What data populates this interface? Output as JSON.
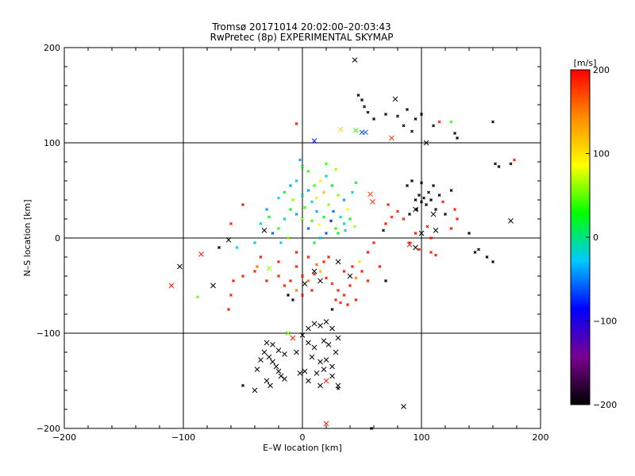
{
  "chart_data": {
    "type": "scatter",
    "title": "Tromsø 20171014 20:02:00–20:03:43",
    "subtitle": "RwPretec (8p) EXPERIMENTAL SKYMAP",
    "xlabel": "E–W location [km]",
    "ylabel": "N–S location [km]",
    "xlim": [
      -200,
      200
    ],
    "ylim": [
      -200,
      200
    ],
    "x_ticks": [
      -200,
      -100,
      0,
      100,
      200
    ],
    "y_ticks": [
      -200,
      -100,
      0,
      100,
      200
    ],
    "x_tick_labels": [
      "−200",
      "−100",
      "0",
      "100",
      "200"
    ],
    "y_tick_labels": [
      "−200",
      "−100",
      "0",
      "100",
      "200"
    ],
    "grid": true,
    "colorbar": {
      "label": "[m/s]",
      "range": [
        -200,
        200
      ],
      "ticks": [
        200,
        100,
        0,
        -100,
        -200
      ],
      "tick_labels": [
        "200",
        "100",
        "0",
        "−100",
        "−200"
      ],
      "colors": [
        "#000000",
        "#7a0090",
        "#0000ff",
        "#00c8ff",
        "#00ff00",
        "#ffff00",
        "#ff8c00",
        "#ff0000"
      ]
    },
    "cross_points": [
      {
        "x": 44,
        "y": 187,
        "v": -200
      },
      {
        "x": 10,
        "y": 102,
        "v": -80
      },
      {
        "x": 32,
        "y": 114,
        "v": 110
      },
      {
        "x": 45,
        "y": 113,
        "v": 40
      },
      {
        "x": 50,
        "y": 111,
        "v": -70
      },
      {
        "x": 53,
        "y": 111,
        "v": -60
      },
      {
        "x": 78,
        "y": 146,
        "v": -200
      },
      {
        "x": 75,
        "y": 105,
        "v": 180
      },
      {
        "x": 57,
        "y": 46,
        "v": 180
      },
      {
        "x": 59,
        "y": 38,
        "v": 180
      },
      {
        "x": 104,
        "y": 100,
        "v": -200
      },
      {
        "x": 95,
        "y": 30,
        "v": -200
      },
      {
        "x": 110,
        "y": 25,
        "v": -200
      },
      {
        "x": 175,
        "y": 18,
        "v": -200
      },
      {
        "x": -110,
        "y": -50,
        "v": 190
      },
      {
        "x": -103,
        "y": -30,
        "v": -200
      },
      {
        "x": -85,
        "y": -17,
        "v": 190
      },
      {
        "x": -75,
        "y": -50,
        "v": -200
      },
      {
        "x": -62,
        "y": -2,
        "v": -200
      },
      {
        "x": -32,
        "y": 8,
        "v": -200
      },
      {
        "x": -28,
        "y": -32,
        "v": 60
      },
      {
        "x": 90,
        "y": -7,
        "v": 190
      },
      {
        "x": 95,
        "y": -10,
        "v": -200
      },
      {
        "x": 100,
        "y": 5,
        "v": -200
      },
      {
        "x": 112,
        "y": 8,
        "v": -200
      },
      {
        "x": 30,
        "y": -25,
        "v": -200
      },
      {
        "x": 40,
        "y": -40,
        "v": -200
      },
      {
        "x": 10,
        "y": -35,
        "v": -200
      },
      {
        "x": 2,
        "y": -48,
        "v": -200
      },
      {
        "x": 15,
        "y": -45,
        "v": -200
      },
      {
        "x": 20,
        "y": -195,
        "v": 190
      },
      {
        "x": 85,
        "y": -177,
        "v": -200
      },
      {
        "x": 20,
        "y": -150,
        "v": 190
      },
      {
        "x": 30,
        "y": -155,
        "v": -200
      },
      {
        "x": -12,
        "y": -100,
        "v": 60
      },
      {
        "x": -8,
        "y": -105,
        "v": 190
      },
      {
        "x": -30,
        "y": -110,
        "v": -200
      },
      {
        "x": -32,
        "y": -120,
        "v": -200
      },
      {
        "x": -28,
        "y": -125,
        "v": -200
      },
      {
        "x": -25,
        "y": -130,
        "v": -200
      },
      {
        "x": -22,
        "y": -135,
        "v": -200
      },
      {
        "x": -20,
        "y": -140,
        "v": -200
      },
      {
        "x": -18,
        "y": -145,
        "v": -200
      },
      {
        "x": -35,
        "y": -128,
        "v": -200
      },
      {
        "x": -38,
        "y": -138,
        "v": -200
      },
      {
        "x": -15,
        "y": -122,
        "v": -200
      },
      {
        "x": -20,
        "y": -118,
        "v": -200
      },
      {
        "x": -25,
        "y": -112,
        "v": -200
      },
      {
        "x": -30,
        "y": -150,
        "v": -200
      },
      {
        "x": -27,
        "y": -155,
        "v": -200
      },
      {
        "x": -40,
        "y": -160,
        "v": -200
      },
      {
        "x": -15,
        "y": -148,
        "v": -200
      },
      {
        "x": 5,
        "y": -95,
        "v": -200
      },
      {
        "x": 10,
        "y": -90,
        "v": -200
      },
      {
        "x": 15,
        "y": -92,
        "v": -200
      },
      {
        "x": 20,
        "y": -88,
        "v": -200
      },
      {
        "x": 25,
        "y": -95,
        "v": -200
      },
      {
        "x": 5,
        "y": -110,
        "v": -200
      },
      {
        "x": 10,
        "y": -115,
        "v": -200
      },
      {
        "x": 18,
        "y": -108,
        "v": -200
      },
      {
        "x": 22,
        "y": -112,
        "v": -200
      },
      {
        "x": 28,
        "y": -120,
        "v": -200
      },
      {
        "x": 8,
        "y": -125,
        "v": -200
      },
      {
        "x": 15,
        "y": -130,
        "v": -200
      },
      {
        "x": 20,
        "y": -128,
        "v": -200
      },
      {
        "x": 25,
        "y": -135,
        "v": -200
      },
      {
        "x": 2,
        "y": -140,
        "v": -200
      },
      {
        "x": 12,
        "y": -142,
        "v": -200
      },
      {
        "x": 18,
        "y": -138,
        "v": -200
      },
      {
        "x": 5,
        "y": -150,
        "v": -200
      },
      {
        "x": 15,
        "y": -155,
        "v": -200
      },
      {
        "x": 25,
        "y": -145,
        "v": -200
      },
      {
        "x": -2,
        "y": -142,
        "v": -200
      },
      {
        "x": 30,
        "y": -105,
        "v": -200
      },
      {
        "x": 0,
        "y": -102,
        "v": -200
      },
      {
        "x": -5,
        "y": -120,
        "v": -200
      }
    ],
    "dot_points": [
      {
        "x": 47,
        "y": 150,
        "v": -200
      },
      {
        "x": 50,
        "y": 145,
        "v": -200
      },
      {
        "x": 52,
        "y": 138,
        "v": -200
      },
      {
        "x": 55,
        "y": 132,
        "v": -200
      },
      {
        "x": 60,
        "y": 125,
        "v": -200
      },
      {
        "x": 70,
        "y": 130,
        "v": -200
      },
      {
        "x": 80,
        "y": 128,
        "v": -200
      },
      {
        "x": 88,
        "y": 135,
        "v": -200
      },
      {
        "x": 95,
        "y": 125,
        "v": -200
      },
      {
        "x": 100,
        "y": 130,
        "v": -200
      },
      {
        "x": 85,
        "y": 118,
        "v": -200
      },
      {
        "x": 92,
        "y": 112,
        "v": -200
      },
      {
        "x": 110,
        "y": 118,
        "v": -200
      },
      {
        "x": 115,
        "y": 122,
        "v": 190
      },
      {
        "x": 125,
        "y": 122,
        "v": 40
      },
      {
        "x": 128,
        "y": 110,
        "v": -200
      },
      {
        "x": 130,
        "y": 105,
        "v": -200
      },
      {
        "x": -5,
        "y": 120,
        "v": 190
      },
      {
        "x": 160,
        "y": 122,
        "v": -200
      },
      {
        "x": 162,
        "y": 78,
        "v": -200
      },
      {
        "x": 165,
        "y": 75,
        "v": -200
      },
      {
        "x": 178,
        "y": 82,
        "v": 190
      },
      {
        "x": 175,
        "y": 78,
        "v": -200
      },
      {
        "x": 95,
        "y": 40,
        "v": -200
      },
      {
        "x": 98,
        "y": 45,
        "v": -200
      },
      {
        "x": 100,
        "y": 38,
        "v": -200
      },
      {
        "x": 102,
        "y": 42,
        "v": -200
      },
      {
        "x": 104,
        "y": 35,
        "v": -200
      },
      {
        "x": 106,
        "y": 48,
        "v": -200
      },
      {
        "x": 108,
        "y": 40,
        "v": -200
      },
      {
        "x": 96,
        "y": 30,
        "v": -200
      },
      {
        "x": 112,
        "y": 30,
        "v": -200
      },
      {
        "x": 115,
        "y": 45,
        "v": -200
      },
      {
        "x": 118,
        "y": 38,
        "v": 190
      },
      {
        "x": 120,
        "y": 25,
        "v": -200
      },
      {
        "x": 90,
        "y": 25,
        "v": -200
      },
      {
        "x": 85,
        "y": 20,
        "v": 190
      },
      {
        "x": 80,
        "y": 28,
        "v": 190
      },
      {
        "x": 75,
        "y": 22,
        "v": 190
      },
      {
        "x": 70,
        "y": 15,
        "v": 190
      },
      {
        "x": 72,
        "y": 35,
        "v": 190
      },
      {
        "x": 68,
        "y": 8,
        "v": -200
      },
      {
        "x": 88,
        "y": 55,
        "v": -200
      },
      {
        "x": 92,
        "y": 60,
        "v": -200
      },
      {
        "x": 100,
        "y": 58,
        "v": -200
      },
      {
        "x": 110,
        "y": 55,
        "v": -200
      },
      {
        "x": 125,
        "y": 50,
        "v": -200
      },
      {
        "x": 128,
        "y": 30,
        "v": 190
      },
      {
        "x": 130,
        "y": 20,
        "v": 190
      },
      {
        "x": 125,
        "y": 10,
        "v": 190
      },
      {
        "x": 105,
        "y": 12,
        "v": 190
      },
      {
        "x": 108,
        "y": 0,
        "v": 190
      },
      {
        "x": 95,
        "y": 5,
        "v": 190
      },
      {
        "x": 90,
        "y": -5,
        "v": 190
      },
      {
        "x": 98,
        "y": -12,
        "v": 190
      },
      {
        "x": 108,
        "y": -15,
        "v": 190
      },
      {
        "x": 112,
        "y": -18,
        "v": 190
      },
      {
        "x": 140,
        "y": 5,
        "v": -200
      },
      {
        "x": 145,
        "y": -15,
        "v": -200
      },
      {
        "x": 155,
        "y": -20,
        "v": -200
      },
      {
        "x": 160,
        "y": -25,
        "v": -200
      },
      {
        "x": 148,
        "y": -12,
        "v": -200
      },
      {
        "x": 0,
        "y": 75,
        "v": 20
      },
      {
        "x": 5,
        "y": 70,
        "v": 40
      },
      {
        "x": -5,
        "y": 60,
        "v": -20
      },
      {
        "x": -10,
        "y": 55,
        "v": -40
      },
      {
        "x": -15,
        "y": 48,
        "v": 20
      },
      {
        "x": -20,
        "y": 42,
        "v": -20
      },
      {
        "x": -8,
        "y": 40,
        "v": 60
      },
      {
        "x": 0,
        "y": 45,
        "v": -20
      },
      {
        "x": 5,
        "y": 50,
        "v": -40
      },
      {
        "x": 10,
        "y": 55,
        "v": 40
      },
      {
        "x": 15,
        "y": 60,
        "v": 80
      },
      {
        "x": 20,
        "y": 65,
        "v": -20
      },
      {
        "x": 25,
        "y": 55,
        "v": 20
      },
      {
        "x": 30,
        "y": 45,
        "v": 60
      },
      {
        "x": 35,
        "y": 40,
        "v": -40
      },
      {
        "x": 38,
        "y": 30,
        "v": 90
      },
      {
        "x": 40,
        "y": 20,
        "v": 20
      },
      {
        "x": 35,
        "y": 15,
        "v": -20
      },
      {
        "x": 28,
        "y": 10,
        "v": 40
      },
      {
        "x": 20,
        "y": 5,
        "v": -60
      },
      {
        "x": 15,
        "y": 0,
        "v": -20
      },
      {
        "x": 10,
        "y": -5,
        "v": 20
      },
      {
        "x": 5,
        "y": 10,
        "v": -60
      },
      {
        "x": 0,
        "y": 20,
        "v": 60
      },
      {
        "x": -5,
        "y": 25,
        "v": -40
      },
      {
        "x": -10,
        "y": 30,
        "v": 20
      },
      {
        "x": -15,
        "y": 20,
        "v": -20
      },
      {
        "x": -20,
        "y": 10,
        "v": 40
      },
      {
        "x": -25,
        "y": 5,
        "v": -60
      },
      {
        "x": -18,
        "y": -5,
        "v": -20
      },
      {
        "x": -12,
        "y": 0,
        "v": 60
      },
      {
        "x": 2,
        "y": 32,
        "v": 40
      },
      {
        "x": 8,
        "y": 38,
        "v": -20
      },
      {
        "x": 12,
        "y": 28,
        "v": -40
      },
      {
        "x": 18,
        "y": 22,
        "v": 20
      },
      {
        "x": 22,
        "y": 35,
        "v": 60
      },
      {
        "x": 26,
        "y": 28,
        "v": -60
      },
      {
        "x": 32,
        "y": 22,
        "v": -20
      },
      {
        "x": 14,
        "y": 14,
        "v": 90
      },
      {
        "x": 8,
        "y": 18,
        "v": 40
      },
      {
        "x": 24,
        "y": 18,
        "v": -80
      },
      {
        "x": 30,
        "y": 5,
        "v": 20
      },
      {
        "x": 36,
        "y": 8,
        "v": -20
      },
      {
        "x": 44,
        "y": 12,
        "v": 60
      },
      {
        "x": -30,
        "y": 30,
        "v": -40
      },
      {
        "x": -28,
        "y": 22,
        "v": 20
      },
      {
        "x": -35,
        "y": 15,
        "v": -20
      },
      {
        "x": 42,
        "y": 48,
        "v": -20
      },
      {
        "x": 45,
        "y": 58,
        "v": 20
      },
      {
        "x": 28,
        "y": 72,
        "v": 60
      },
      {
        "x": 20,
        "y": 78,
        "v": 40
      },
      {
        "x": -2,
        "y": 82,
        "v": -40
      },
      {
        "x": 12,
        "y": 42,
        "v": 100
      },
      {
        "x": 18,
        "y": 48,
        "v": 120
      },
      {
        "x": -50,
        "y": 35,
        "v": 190
      },
      {
        "x": -60,
        "y": 15,
        "v": 190
      },
      {
        "x": -70,
        "y": -10,
        "v": -200
      },
      {
        "x": -55,
        "y": -10,
        "v": -20
      },
      {
        "x": -40,
        "y": -5,
        "v": -20
      },
      {
        "x": -5,
        "y": -30,
        "v": 190
      },
      {
        "x": 0,
        "y": -40,
        "v": 190
      },
      {
        "x": 5,
        "y": -45,
        "v": 150
      },
      {
        "x": 10,
        "y": -38,
        "v": 190
      },
      {
        "x": 15,
        "y": -35,
        "v": 120
      },
      {
        "x": 20,
        "y": -42,
        "v": 190
      },
      {
        "x": 25,
        "y": -48,
        "v": 190
      },
      {
        "x": 30,
        "y": -55,
        "v": 190
      },
      {
        "x": 35,
        "y": -60,
        "v": 190
      },
      {
        "x": 32,
        "y": -68,
        "v": 190
      },
      {
        "x": 28,
        "y": -65,
        "v": 190
      },
      {
        "x": 38,
        "y": -70,
        "v": 190
      },
      {
        "x": 40,
        "y": -50,
        "v": 190
      },
      {
        "x": 45,
        "y": -42,
        "v": 150
      },
      {
        "x": 50,
        "y": -35,
        "v": 190
      },
      {
        "x": 55,
        "y": -45,
        "v": 190
      },
      {
        "x": 48,
        "y": -25,
        "v": 100
      },
      {
        "x": 42,
        "y": -30,
        "v": 190
      },
      {
        "x": 35,
        "y": -35,
        "v": 190
      },
      {
        "x": -10,
        "y": -45,
        "v": 190
      },
      {
        "x": -15,
        "y": -50,
        "v": 190
      },
      {
        "x": -20,
        "y": -40,
        "v": 190
      },
      {
        "x": -30,
        "y": -45,
        "v": 190
      },
      {
        "x": -40,
        "y": -35,
        "v": 190
      },
      {
        "x": -50,
        "y": -40,
        "v": 190
      },
      {
        "x": -58,
        "y": -45,
        "v": 190
      },
      {
        "x": -60,
        "y": -60,
        "v": 190
      },
      {
        "x": -62,
        "y": -75,
        "v": 190
      },
      {
        "x": -88,
        "y": -62,
        "v": 50
      },
      {
        "x": -35,
        "y": -20,
        "v": 190
      },
      {
        "x": -38,
        "y": -30,
        "v": 150
      },
      {
        "x": -5,
        "y": -15,
        "v": 190
      },
      {
        "x": 5,
        "y": -20,
        "v": 190
      },
      {
        "x": 0,
        "y": -60,
        "v": 190
      },
      {
        "x": -5,
        "y": -55,
        "v": 150
      },
      {
        "x": 8,
        "y": -55,
        "v": 190
      },
      {
        "x": 12,
        "y": -28,
        "v": 160
      },
      {
        "x": 18,
        "y": -25,
        "v": 190
      },
      {
        "x": -8,
        "y": -65,
        "v": -200
      },
      {
        "x": -12,
        "y": -60,
        "v": -200
      },
      {
        "x": 22,
        "y": -20,
        "v": 190
      },
      {
        "x": 65,
        "y": -30,
        "v": 190
      },
      {
        "x": 60,
        "y": -5,
        "v": 190
      },
      {
        "x": 55,
        "y": -15,
        "v": 190
      },
      {
        "x": 70,
        "y": -45,
        "v": -200
      },
      {
        "x": 45,
        "y": -65,
        "v": 190
      },
      {
        "x": 25,
        "y": -75,
        "v": -200
      },
      {
        "x": -20,
        "y": -25,
        "v": 190
      },
      {
        "x": -50,
        "y": -155,
        "v": -200
      },
      {
        "x": 58,
        "y": -200,
        "v": -200
      },
      {
        "x": 30,
        "y": -158,
        "v": -200
      }
    ]
  }
}
